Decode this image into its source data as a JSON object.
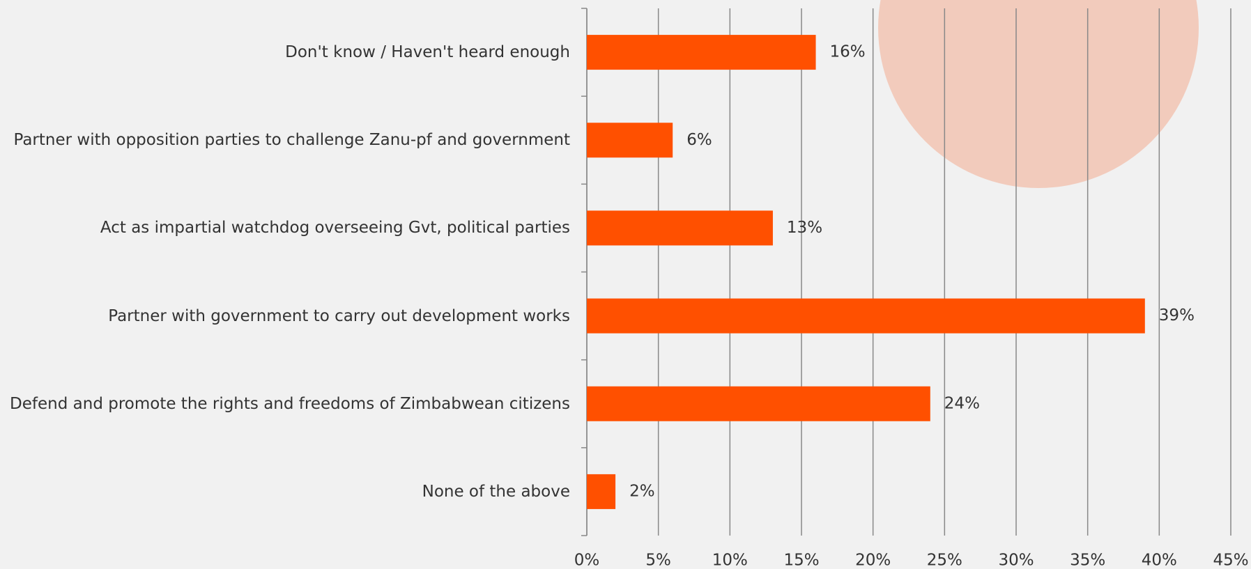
{
  "chart_data": {
    "type": "hbar",
    "categories": [
      "Don't know / Haven't heard enough",
      "Partner with opposition parties to challenge Zanu-pf and government",
      "Act as impartial watchdog overseeing Gvt, political parties",
      "Partner with government to carry out development works",
      "Defend and promote the rights and freedoms of Zimbabwean citizens",
      "None of the above"
    ],
    "values": [
      16,
      6,
      13,
      39,
      24,
      2
    ],
    "value_labels": [
      "16%",
      "6%",
      "13%",
      "39%",
      "24%",
      "2%"
    ],
    "color": "#ff5000",
    "xlim": [
      0,
      45
    ],
    "xticks": [
      {
        "value": 0,
        "label": "0%"
      },
      {
        "value": 5,
        "label": "5%"
      },
      {
        "value": 10,
        "label": "10%"
      },
      {
        "value": 15,
        "label": "15%"
      },
      {
        "value": 20,
        "label": "20%"
      },
      {
        "value": 25,
        "label": "25%"
      },
      {
        "value": 30,
        "label": "30%"
      },
      {
        "value": 35,
        "label": "35%"
      },
      {
        "value": 40,
        "label": "40%"
      },
      {
        "value": 45,
        "label": "45%"
      }
    ],
    "grid": true
  }
}
